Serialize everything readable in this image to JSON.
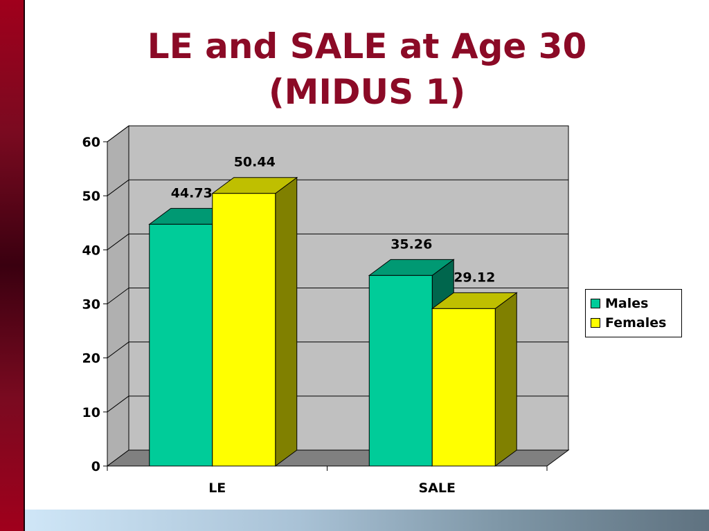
{
  "slide": {
    "title_line1": "LE and SALE at Age 30",
    "title_line2": "(MIDUS 1)"
  },
  "colors": {
    "title": "#8b0a26",
    "males": "#00cc99",
    "females": "#ffff00",
    "plot_wall": "#c0c0c0",
    "floor": "#808080"
  },
  "chart_data": {
    "type": "bar",
    "categories": [
      "LE",
      "SALE"
    ],
    "series": [
      {
        "name": "Males",
        "values": [
          44.73,
          35.26
        ],
        "labels": [
          "44.73",
          "35.26"
        ]
      },
      {
        "name": "Females",
        "values": [
          50.44,
          29.12
        ],
        "labels": [
          "50.44",
          "29.12"
        ]
      }
    ],
    "ylim": [
      0,
      60
    ],
    "yticks": [
      0,
      10,
      20,
      30,
      40,
      50,
      60
    ],
    "grid": true,
    "legend": "right",
    "style": "3d clustered column"
  }
}
